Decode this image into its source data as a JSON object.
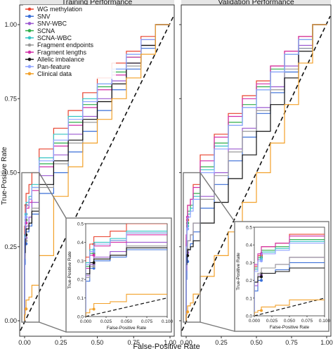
{
  "figure": {
    "ylabel": "True-Positive Rate",
    "xlabel": "False-Positive Rate"
  },
  "legend": {
    "placement": "top-left",
    "items": [
      {
        "label": "WG methylation",
        "color": "#e8412d"
      },
      {
        "label": "SNV",
        "color": "#3a6fd8"
      },
      {
        "label": "SNV-WBC",
        "color": "#9b59d0"
      },
      {
        "label": "SCNA",
        "color": "#2fae4a"
      },
      {
        "label": "SCNA-WBC",
        "color": "#33c4c4"
      },
      {
        "label": "Fragment endpoints",
        "color": "#9a9a9a"
      },
      {
        "label": "Fragment lengths",
        "color": "#d12fa8"
      },
      {
        "label": "Allelic imbalance",
        "color": "#111111"
      },
      {
        "label": "Pan-feature",
        "color": "#8fa3ff"
      },
      {
        "label": "Clinical data",
        "color": "#f2a12a"
      }
    ]
  },
  "chart_data": [
    {
      "type": "line",
      "title": "Training Performance",
      "xlabel": "False-Positive Rate",
      "ylabel": "True-Positive Rate",
      "xlim": [
        0,
        1
      ],
      "ylim": [
        0,
        1
      ],
      "xticks": [
        "0.00",
        "0.25",
        "0.50",
        "0.75",
        "1.00"
      ],
      "yticks": [
        "0.00",
        "0.25",
        "0.50",
        "0.75",
        "1.00"
      ],
      "reference_line": "diagonal dashed",
      "series": [
        {
          "name": "WG methylation",
          "x": [
            0,
            0.005,
            0.01,
            0.03,
            0.05,
            0.1,
            0.2,
            0.3,
            0.4,
            0.5,
            0.6,
            0.7,
            0.8,
            0.9,
            1.0
          ],
          "y": [
            0,
            0.32,
            0.39,
            0.43,
            0.46,
            0.5,
            0.58,
            0.65,
            0.71,
            0.77,
            0.82,
            0.87,
            0.91,
            0.96,
            1.0
          ]
        },
        {
          "name": "SNV",
          "x": [
            0,
            0.005,
            0.01,
            0.03,
            0.05,
            0.1,
            0.2,
            0.3,
            0.4,
            0.5,
            0.6,
            0.7,
            0.8,
            0.9,
            1.0
          ],
          "y": [
            0,
            0.19,
            0.26,
            0.3,
            0.32,
            0.36,
            0.43,
            0.5,
            0.57,
            0.64,
            0.71,
            0.78,
            0.85,
            0.92,
            1.0
          ]
        },
        {
          "name": "SNV-WBC",
          "x": [
            0,
            0.005,
            0.01,
            0.03,
            0.05,
            0.1,
            0.2,
            0.3,
            0.4,
            0.5,
            0.6,
            0.7,
            0.8,
            0.9,
            1.0
          ],
          "y": [
            0,
            0.22,
            0.28,
            0.32,
            0.35,
            0.4,
            0.49,
            0.56,
            0.63,
            0.69,
            0.75,
            0.81,
            0.87,
            0.93,
            1.0
          ]
        },
        {
          "name": "SCNA",
          "x": [
            0,
            0.005,
            0.01,
            0.03,
            0.05,
            0.1,
            0.2,
            0.3,
            0.4,
            0.5,
            0.6,
            0.7,
            0.8,
            0.9,
            1.0
          ],
          "y": [
            0,
            0.27,
            0.34,
            0.39,
            0.41,
            0.45,
            0.53,
            0.6,
            0.67,
            0.73,
            0.79,
            0.84,
            0.89,
            0.95,
            1.0
          ]
        },
        {
          "name": "SCNA-WBC",
          "x": [
            0,
            0.005,
            0.01,
            0.03,
            0.05,
            0.1,
            0.2,
            0.3,
            0.4,
            0.5,
            0.6,
            0.7,
            0.8,
            0.9,
            1.0
          ],
          "y": [
            0,
            0.29,
            0.36,
            0.4,
            0.42,
            0.46,
            0.55,
            0.63,
            0.69,
            0.75,
            0.8,
            0.85,
            0.9,
            0.95,
            1.0
          ]
        },
        {
          "name": "Fragment endpoints",
          "x": [
            0,
            0.005,
            0.01,
            0.03,
            0.05,
            0.1,
            0.2,
            0.3,
            0.4,
            0.5,
            0.6,
            0.7,
            0.8,
            0.9,
            1.0
          ],
          "y": [
            0,
            0.21,
            0.27,
            0.31,
            0.33,
            0.38,
            0.45,
            0.53,
            0.6,
            0.67,
            0.74,
            0.8,
            0.86,
            0.93,
            1.0
          ]
        },
        {
          "name": "Fragment lengths",
          "x": [
            0,
            0.005,
            0.01,
            0.03,
            0.05,
            0.1,
            0.2,
            0.3,
            0.4,
            0.5,
            0.6,
            0.7,
            0.8,
            0.9,
            1.0
          ],
          "y": [
            0,
            0.26,
            0.33,
            0.38,
            0.4,
            0.44,
            0.52,
            0.59,
            0.66,
            0.72,
            0.78,
            0.83,
            0.89,
            0.95,
            1.0
          ]
        },
        {
          "name": "Allelic imbalance",
          "x": [
            0,
            0.005,
            0.01,
            0.03,
            0.05,
            0.1,
            0.2,
            0.3,
            0.4,
            0.5,
            0.6,
            0.7,
            0.8,
            0.9,
            1.0
          ],
          "y": [
            0,
            0.23,
            0.29,
            0.31,
            0.33,
            0.37,
            0.46,
            0.54,
            0.61,
            0.68,
            0.74,
            0.8,
            0.87,
            0.93,
            1.0
          ]
        },
        {
          "name": "Pan-feature",
          "x": [
            0,
            0.005,
            0.01,
            0.03,
            0.05,
            0.1,
            0.2,
            0.3,
            0.4,
            0.5,
            0.6,
            0.7,
            0.8,
            0.9,
            1.0
          ],
          "y": [
            0,
            0.28,
            0.35,
            0.39,
            0.41,
            0.45,
            0.54,
            0.61,
            0.68,
            0.74,
            0.8,
            0.85,
            0.9,
            0.95,
            1.0
          ]
        },
        {
          "name": "Clinical data",
          "x": [
            0,
            0.005,
            0.01,
            0.03,
            0.05,
            0.1,
            0.2,
            0.3,
            0.4,
            0.5,
            0.6,
            0.7,
            0.8,
            0.9,
            1.0
          ],
          "y": [
            0,
            0.02,
            0.04,
            0.07,
            0.08,
            0.12,
            0.22,
            0.42,
            0.52,
            0.6,
            0.68,
            0.75,
            0.82,
            0.9,
            1.0
          ]
        }
      ],
      "inset": {
        "xlabel": "False-Positive Rate",
        "ylabel": "True-Positive Rate",
        "xlim": [
          0,
          0.1
        ],
        "ylim": [
          0,
          0.5
        ],
        "xticks": [
          "0.000",
          "0.025",
          "0.050",
          "0.075",
          "0.100"
        ],
        "yticks": [
          "0.0",
          "0.1",
          "0.2",
          "0.3",
          "0.4",
          "0.5"
        ]
      }
    },
    {
      "type": "line",
      "title": "Validation Performance",
      "xlabel": "False-Positive Rate",
      "ylabel": "True-Positive Rate",
      "xlim": [
        0,
        1
      ],
      "ylim": [
        0,
        1
      ],
      "xticks": [
        "0.00",
        "0.25",
        "0.50",
        "0.75",
        "1.00"
      ],
      "yticks": [
        "0.00",
        "0.25",
        "0.50",
        "0.75",
        "1.00"
      ],
      "reference_line": "diagonal dashed",
      "series": [
        {
          "name": "WG methylation",
          "x": [
            0,
            0.005,
            0.01,
            0.03,
            0.05,
            0.1,
            0.2,
            0.3,
            0.4,
            0.5,
            0.6,
            0.7,
            0.8,
            0.9,
            1.0
          ],
          "y": [
            0,
            0.28,
            0.34,
            0.39,
            0.41,
            0.46,
            0.56,
            0.63,
            0.7,
            0.76,
            0.81,
            0.86,
            0.91,
            0.96,
            1.0
          ]
        },
        {
          "name": "SNV",
          "x": [
            0,
            0.005,
            0.01,
            0.03,
            0.05,
            0.1,
            0.2,
            0.3,
            0.4,
            0.5,
            0.6,
            0.7,
            0.8,
            0.9,
            1.0
          ],
          "y": [
            0,
            0.14,
            0.2,
            0.24,
            0.26,
            0.3,
            0.38,
            0.46,
            0.54,
            0.62,
            0.7,
            0.77,
            0.84,
            0.92,
            1.0
          ]
        },
        {
          "name": "SNV-WBC",
          "x": [
            0,
            0.005,
            0.01,
            0.03,
            0.05,
            0.1,
            0.2,
            0.3,
            0.4,
            0.5,
            0.6,
            0.7,
            0.8,
            0.9,
            1.0
          ],
          "y": [
            0,
            0.17,
            0.23,
            0.27,
            0.29,
            0.33,
            0.42,
            0.5,
            0.58,
            0.65,
            0.72,
            0.79,
            0.86,
            0.93,
            1.0
          ]
        },
        {
          "name": "SCNA",
          "x": [
            0,
            0.005,
            0.01,
            0.03,
            0.05,
            0.1,
            0.2,
            0.3,
            0.4,
            0.5,
            0.6,
            0.7,
            0.8,
            0.9,
            1.0
          ],
          "y": [
            0,
            0.27,
            0.33,
            0.37,
            0.39,
            0.43,
            0.52,
            0.6,
            0.67,
            0.73,
            0.79,
            0.85,
            0.9,
            0.95,
            1.0
          ]
        },
        {
          "name": "SCNA-WBC",
          "x": [
            0,
            0.005,
            0.01,
            0.03,
            0.05,
            0.1,
            0.2,
            0.3,
            0.4,
            0.5,
            0.6,
            0.7,
            0.8,
            0.9,
            1.0
          ],
          "y": [
            0,
            0.26,
            0.32,
            0.36,
            0.38,
            0.42,
            0.51,
            0.59,
            0.66,
            0.72,
            0.78,
            0.84,
            0.9,
            0.95,
            1.0
          ]
        },
        {
          "name": "Fragment endpoints",
          "x": [
            0,
            0.005,
            0.01,
            0.03,
            0.05,
            0.1,
            0.2,
            0.3,
            0.4,
            0.5,
            0.6,
            0.7,
            0.8,
            0.9,
            1.0
          ],
          "y": [
            0,
            0.19,
            0.24,
            0.27,
            0.29,
            0.33,
            0.41,
            0.49,
            0.57,
            0.64,
            0.71,
            0.78,
            0.85,
            0.92,
            1.0
          ]
        },
        {
          "name": "Fragment lengths",
          "x": [
            0,
            0.005,
            0.01,
            0.03,
            0.05,
            0.1,
            0.2,
            0.3,
            0.4,
            0.5,
            0.6,
            0.7,
            0.8,
            0.9,
            1.0
          ],
          "y": [
            0,
            0.29,
            0.35,
            0.39,
            0.41,
            0.45,
            0.54,
            0.62,
            0.69,
            0.75,
            0.8,
            0.86,
            0.91,
            0.96,
            1.0
          ]
        },
        {
          "name": "Allelic imbalance",
          "x": [
            0,
            0.005,
            0.01,
            0.03,
            0.05,
            0.1,
            0.2,
            0.3,
            0.4,
            0.5,
            0.6,
            0.7,
            0.8,
            0.9,
            1.0
          ],
          "y": [
            0,
            0.19,
            0.22,
            0.24,
            0.25,
            0.27,
            0.33,
            0.4,
            0.48,
            0.56,
            0.64,
            0.73,
            0.82,
            0.91,
            1.0
          ]
        },
        {
          "name": "Pan-feature",
          "x": [
            0,
            0.005,
            0.01,
            0.03,
            0.05,
            0.1,
            0.2,
            0.3,
            0.4,
            0.5,
            0.6,
            0.7,
            0.8,
            0.9,
            1.0
          ],
          "y": [
            0,
            0.25,
            0.31,
            0.35,
            0.37,
            0.41,
            0.5,
            0.58,
            0.66,
            0.72,
            0.78,
            0.84,
            0.9,
            0.95,
            1.0
          ]
        },
        {
          "name": "Clinical data",
          "x": [
            0,
            0.005,
            0.01,
            0.03,
            0.05,
            0.1,
            0.2,
            0.3,
            0.4,
            0.5,
            0.6,
            0.7,
            0.8,
            0.9,
            1.0
          ],
          "y": [
            0,
            0.02,
            0.03,
            0.05,
            0.06,
            0.09,
            0.15,
            0.22,
            0.3,
            0.4,
            0.5,
            0.6,
            0.73,
            0.87,
            1.0
          ]
        }
      ],
      "inset": {
        "xlabel": "False-Positive Rate",
        "ylabel": "True-Positive Rate",
        "xlim": [
          0,
          0.1
        ],
        "ylim": [
          0,
          0.5
        ],
        "xticks": [
          "0.000",
          "0.025",
          "0.050",
          "0.075",
          "0.100"
        ],
        "yticks": [
          "0.0",
          "0.1",
          "0.2",
          "0.3",
          "0.4",
          "0.5"
        ]
      }
    }
  ]
}
